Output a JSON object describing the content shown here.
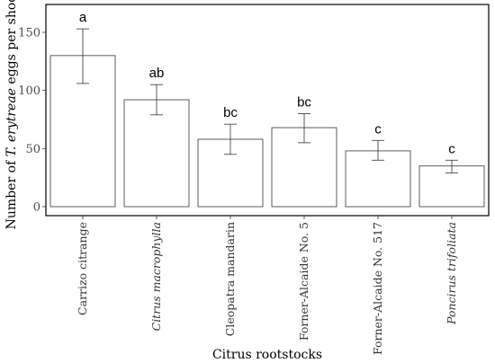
{
  "chart_data": {
    "type": "bar",
    "title": "",
    "xlabel": "Citrus rootstocks",
    "ylabel": {
      "prefix": "Number of ",
      "italic": "T. erytreae",
      "suffix": " eggs per shoot"
    },
    "ylim": [
      0,
      165
    ],
    "yticks": [
      0,
      50,
      100,
      150
    ],
    "grid": false,
    "categories": [
      {
        "label": "Carrizo citrange",
        "italic": false
      },
      {
        "label": "Citrus macrophylla",
        "italic": true
      },
      {
        "label": "Cleopatra mandarin",
        "italic": false
      },
      {
        "label": "Forner-Alcaide No. 5",
        "italic": false
      },
      {
        "label": "Forner-Alcaide No. 517",
        "italic": false
      },
      {
        "label": "Poncirus trifoliata",
        "italic": true
      }
    ],
    "values": [
      130,
      92,
      58,
      68,
      48,
      35
    ],
    "error_upper": [
      153,
      105,
      71,
      80,
      57,
      40
    ],
    "error_lower": [
      106,
      79,
      45,
      55,
      40,
      29
    ],
    "significance_letters": [
      "a",
      "ab",
      "bc",
      "bc",
      "c",
      "c"
    ]
  }
}
